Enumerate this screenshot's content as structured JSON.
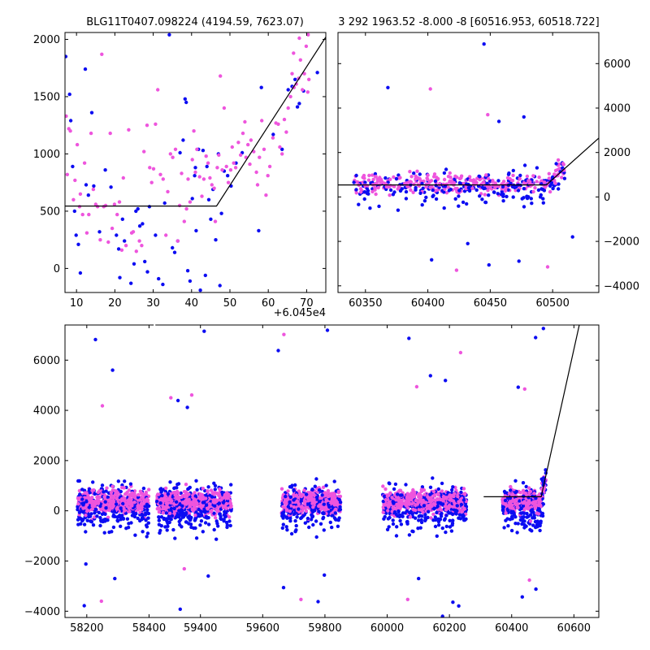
{
  "colors": {
    "blue": "#0c0cf2",
    "magenta": "#ee55dd",
    "axes": "#000000"
  },
  "chart_data": [
    {
      "id": "zoom-panel",
      "type": "scatter",
      "title": "BLG11T0407.098224 (4194.59, 7623.07)",
      "x_offset_label": "+6.045e4",
      "xlim": [
        7,
        75
      ],
      "ylim": [
        -210,
        2060
      ],
      "xticks": [
        10,
        20,
        30,
        40,
        50,
        60,
        70
      ],
      "yticks": [
        0,
        500,
        1000,
        1500,
        2000
      ],
      "ytick_side": "left",
      "model_line": {
        "x": [
          7,
          46.5,
          75
        ],
        "y": [
          545,
          545,
          2020
        ]
      },
      "series": [
        {
          "color": "blue",
          "points": [
            [
              7.2,
              1850
            ],
            [
              8.2,
              1520
            ],
            [
              8.5,
              1290
            ],
            [
              9.0,
              890
            ],
            [
              9.5,
              500
            ],
            [
              9.9,
              290
            ],
            [
              10.5,
              210
            ],
            [
              11,
              -40
            ],
            [
              12.3,
              1740
            ],
            [
              12.5,
              730
            ],
            [
              13.1,
              640
            ],
            [
              14.0,
              1360
            ],
            [
              14.5,
              720
            ],
            [
              16.0,
              320
            ],
            [
              17.5,
              860
            ],
            [
              19.0,
              710
            ],
            [
              20.4,
              290
            ],
            [
              21,
              170
            ],
            [
              21.3,
              -80
            ],
            [
              22,
              430
            ],
            [
              22.5,
              240
            ],
            [
              23.4,
              -280
            ],
            [
              24.2,
              -130
            ],
            [
              25.0,
              40
            ],
            [
              25.5,
              500
            ],
            [
              26.0,
              520
            ],
            [
              26.5,
              370
            ],
            [
              27.2,
              390
            ],
            [
              27.8,
              60
            ],
            [
              28.5,
              -30
            ],
            [
              29.0,
              540
            ],
            [
              30.6,
              290
            ],
            [
              31.4,
              -90
            ],
            [
              32.5,
              -140
            ],
            [
              33.0,
              570
            ],
            [
              34.2,
              2040
            ],
            [
              35.0,
              180
            ],
            [
              35.6,
              140
            ],
            [
              36.4,
              240
            ],
            [
              37.0,
              1010
            ],
            [
              37.8,
              1120
            ],
            [
              38.3,
              1480
            ],
            [
              38.6,
              1450
            ],
            [
              39.0,
              -20
            ],
            [
              39.6,
              -110
            ],
            [
              40.2,
              610
            ],
            [
              40.8,
              810
            ],
            [
              41.0,
              880
            ],
            [
              41.2,
              330
            ],
            [
              41.8,
              1040
            ],
            [
              42.3,
              -190
            ],
            [
              43.0,
              1030
            ],
            [
              43.6,
              -60
            ],
            [
              44.0,
              890
            ],
            [
              44.5,
              600
            ],
            [
              45.0,
              430
            ],
            [
              45.6,
              690
            ],
            [
              46.3,
              250
            ],
            [
              47.4,
              -150
            ],
            [
              47.0,
              1000
            ],
            [
              47.8,
              480
            ],
            [
              48.5,
              850
            ],
            [
              49.4,
              810
            ],
            [
              50.3,
              720
            ],
            [
              51.6,
              920
            ],
            [
              53.2,
              1010
            ],
            [
              57.5,
              330
            ],
            [
              58.2,
              1580
            ],
            [
              61.3,
              1170
            ],
            [
              63.6,
              1040
            ],
            [
              65.2,
              1560
            ],
            [
              66.2,
              1590
            ],
            [
              67.0,
              1650
            ],
            [
              67.6,
              1410
            ],
            [
              68.1,
              1440
            ],
            [
              69.2,
              1550
            ],
            [
              72.8,
              1710
            ]
          ]
        },
        {
          "color": "magenta",
          "points": [
            [
              7.3,
              1330
            ],
            [
              7.6,
              820
            ],
            [
              8.0,
              1220
            ],
            [
              8.4,
              1200
            ],
            [
              9.2,
              600
            ],
            [
              9.6,
              770
            ],
            [
              10.2,
              1080
            ],
            [
              10.8,
              540
            ],
            [
              11.0,
              650
            ],
            [
              11.6,
              470
            ],
            [
              12.1,
              920
            ],
            [
              12.7,
              310
            ],
            [
              13.2,
              470
            ],
            [
              13.8,
              1180
            ],
            [
              14.4,
              690
            ],
            [
              15.0,
              560
            ],
            [
              15.5,
              540
            ],
            [
              16.2,
              250
            ],
            [
              16.6,
              1870
            ],
            [
              17.1,
              540
            ],
            [
              17.6,
              550
            ],
            [
              18.3,
              230
            ],
            [
              18.8,
              1180
            ],
            [
              19.3,
              350
            ],
            [
              19.9,
              560
            ],
            [
              20.6,
              470
            ],
            [
              21.2,
              580
            ],
            [
              21.8,
              160
            ],
            [
              22.2,
              790
            ],
            [
              22.9,
              200
            ],
            [
              23.6,
              1210
            ],
            [
              24.4,
              310
            ],
            [
              24.8,
              320
            ],
            [
              25.6,
              150
            ],
            [
              26.4,
              240
            ],
            [
              27.0,
              200
            ],
            [
              27.6,
              1020
            ],
            [
              28.4,
              1250
            ],
            [
              29.1,
              880
            ],
            [
              29.6,
              750
            ],
            [
              30.1,
              870
            ],
            [
              30.6,
              1260
            ],
            [
              31.2,
              1560
            ],
            [
              31.9,
              820
            ],
            [
              32.6,
              780
            ],
            [
              33.3,
              290
            ],
            [
              33.8,
              670
            ],
            [
              34.5,
              1000
            ],
            [
              35.1,
              970
            ],
            [
              35.8,
              1040
            ],
            [
              36.4,
              240
            ],
            [
              36.9,
              550
            ],
            [
              37.4,
              830
            ],
            [
              38.1,
              410
            ],
            [
              38.7,
              520
            ],
            [
              39.1,
              780
            ],
            [
              39.6,
              580
            ],
            [
              40.2,
              950
            ],
            [
              40.6,
              1200
            ],
            [
              41.0,
              840
            ],
            [
              41.4,
              1040
            ],
            [
              42.1,
              800
            ],
            [
              42.7,
              630
            ],
            [
              43.2,
              780
            ],
            [
              43.8,
              980
            ],
            [
              44.3,
              920
            ],
            [
              44.8,
              790
            ],
            [
              45.3,
              730
            ],
            [
              45.9,
              700
            ],
            [
              46.2,
              410
            ],
            [
              46.7,
              880
            ],
            [
              47.1,
              990
            ],
            [
              47.5,
              1680
            ],
            [
              48.0,
              860
            ],
            [
              48.5,
              1400
            ],
            [
              49.1,
              890
            ],
            [
              49.6,
              750
            ],
            [
              50.2,
              860
            ],
            [
              50.6,
              1060
            ],
            [
              51.0,
              920
            ],
            [
              51.5,
              880
            ],
            [
              52.2,
              1100
            ],
            [
              52.8,
              990
            ],
            [
              53.4,
              1180
            ],
            [
              53.9,
              1280
            ],
            [
              54.2,
              970
            ],
            [
              54.7,
              1080
            ],
            [
              55.2,
              910
            ],
            [
              55.5,
              1120
            ],
            [
              56.2,
              1020
            ],
            [
              56.9,
              840
            ],
            [
              57.2,
              730
            ],
            [
              57.7,
              970
            ],
            [
              58.3,
              1290
            ],
            [
              58.9,
              1040
            ],
            [
              59.4,
              640
            ],
            [
              59.9,
              810
            ],
            [
              60.4,
              890
            ],
            [
              61.2,
              1140
            ],
            [
              62.0,
              1270
            ],
            [
              62.6,
              1260
            ],
            [
              63.0,
              1060
            ],
            [
              63.6,
              1000
            ],
            [
              64.2,
              1300
            ],
            [
              64.7,
              1190
            ],
            [
              65.2,
              1400
            ],
            [
              65.8,
              1500
            ],
            [
              66.2,
              1700
            ],
            [
              66.7,
              1580
            ],
            [
              67.3,
              1610
            ],
            [
              67.9,
              1660
            ],
            [
              68.4,
              1820
            ],
            [
              68.9,
              1560
            ],
            [
              69.4,
              1700
            ],
            [
              70.3,
              1540
            ],
            [
              70.6,
              1650
            ],
            [
              68.1,
              2010
            ],
            [
              69.9,
              1940
            ],
            [
              70.4,
              2040
            ],
            [
              66.6,
              1880
            ]
          ]
        }
      ]
    },
    {
      "id": "season-panel",
      "type": "scatter",
      "title": "3 292 1963.52 -8.000 -8 [60516.953, 60518.722]",
      "xlim": [
        60328,
        60537
      ],
      "ylim": [
        -4300,
        7400
      ],
      "xticks": [
        60350,
        60400,
        60450,
        60500
      ],
      "yticks": [
        -4000,
        -2000,
        0,
        2000,
        4000,
        6000
      ],
      "ytick_side": "right",
      "model_line": {
        "x": [
          60328,
          60495,
          60537
        ],
        "y": [
          540,
          540,
          2650
        ]
      }
    },
    {
      "id": "full-panel",
      "type": "scatter",
      "xlim": [
        58130,
        60680
      ],
      "ylim": [
        -4250,
        7400
      ],
      "xticks": [
        58200,
        58400,
        59400,
        59600,
        59800,
        60000,
        60200,
        60400,
        60600
      ],
      "yticks": [
        -4000,
        -2000,
        0,
        2000,
        4000,
        6000
      ],
      "ytick_side": "left",
      "gap_break": {
        "from": 58415,
        "to": 59255
      },
      "model_line": {
        "x": [
          60310,
          60495,
          60618
        ],
        "y": [
          560,
          560,
          7450
        ]
      },
      "seasons": [
        {
          "center": 58285,
          "width": 230,
          "outliers": [
            [
              58228,
              6820
            ],
            [
              58250,
              4180
            ],
            [
              58283,
              5600
            ],
            [
              58192,
              -3780
            ],
            [
              58247,
              -3600
            ],
            [
              58290,
              -2700
            ],
            [
              58197,
              -2120
            ]
          ]
        },
        {
          "center": 59380,
          "width": 240,
          "outliers": [
            [
              59412,
              7150
            ],
            [
              59305,
              4500
            ],
            [
              59328,
              4390
            ],
            [
              59358,
              4120
            ],
            [
              59372,
              4610
            ],
            [
              59335,
              -3920
            ],
            [
              59425,
              -2600
            ],
            [
              59348,
              -2310
            ]
          ]
        },
        {
          "center": 59755,
          "width": 190,
          "outliers": [
            [
              59650,
              6380
            ],
            [
              59668,
              7020
            ],
            [
              59808,
              7190
            ],
            [
              59778,
              -3620
            ],
            [
              59723,
              -3530
            ],
            [
              59667,
              -3060
            ],
            [
              59798,
              -2560
            ]
          ]
        },
        {
          "center": 60120,
          "width": 270,
          "outliers": [
            [
              60070,
              6870
            ],
            [
              60095,
              4940
            ],
            [
              60139,
              5380
            ],
            [
              60187,
              5190
            ],
            [
              60236,
              6300
            ],
            [
              60178,
              -4200
            ],
            [
              60230,
              -3790
            ],
            [
              60066,
              -3530
            ],
            [
              60211,
              -3640
            ],
            [
              60101,
              -2700
            ]
          ]
        },
        {
          "center": 60440,
          "width": 140,
          "outliers": [
            [
              60421,
              4920
            ],
            [
              60442,
              4850
            ],
            [
              60477,
              6900
            ],
            [
              60502,
              7260
            ],
            [
              60457,
              -2760
            ],
            [
              60434,
              -3430
            ],
            [
              60478,
              -3120
            ]
          ]
        }
      ]
    }
  ]
}
